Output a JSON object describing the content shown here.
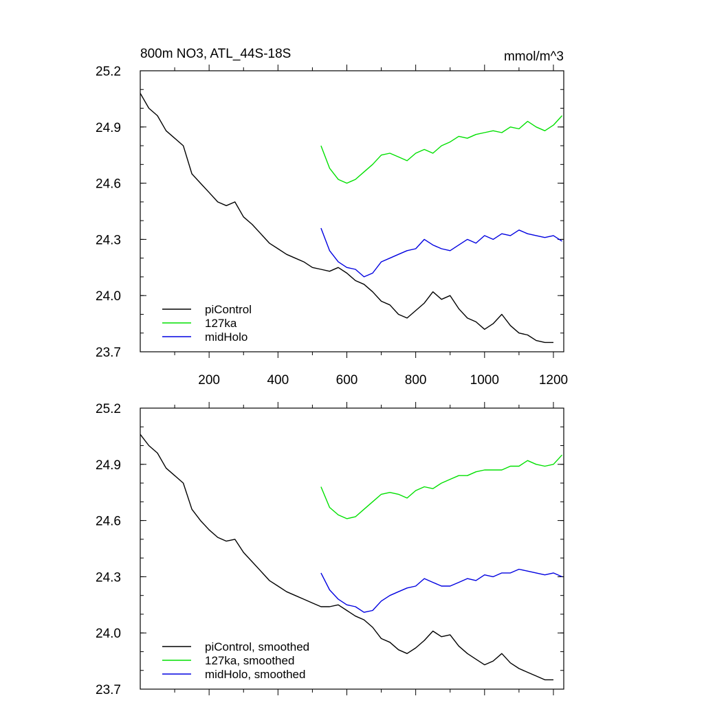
{
  "chart_data": [
    {
      "type": "line",
      "title": "800m NO3, ATL_44S-18S",
      "units_label": "mmol/m^3",
      "xlim": [
        0,
        1230
      ],
      "ylim": [
        23.7,
        25.2
      ],
      "x_ticks": [
        200,
        400,
        600,
        800,
        1000,
        1200
      ],
      "x_tick_labels": [
        "200",
        "400",
        "600",
        "800",
        "1000",
        "1200"
      ],
      "y_ticks": [
        23.7,
        24.0,
        24.3,
        24.6,
        24.9,
        25.2
      ],
      "y_tick_labels": [
        "23.7",
        "24.0",
        "24.3",
        "24.6",
        "24.9",
        "25.2"
      ],
      "legend_position": "bottom-left",
      "series": [
        {
          "name": "piControl",
          "color": "#000000",
          "x": [
            0,
            25,
            50,
            75,
            100,
            125,
            150,
            175,
            200,
            225,
            250,
            275,
            300,
            325,
            350,
            375,
            400,
            425,
            450,
            475,
            500,
            525,
            550,
            575,
            600,
            625,
            650,
            675,
            700,
            725,
            750,
            775,
            800,
            825,
            850,
            875,
            900,
            925,
            950,
            975,
            1000,
            1025,
            1050,
            1075,
            1100,
            1125,
            1150,
            1175,
            1200
          ],
          "y": [
            25.08,
            25.0,
            24.96,
            24.88,
            24.84,
            24.8,
            24.65,
            24.6,
            24.55,
            24.5,
            24.48,
            24.5,
            24.42,
            24.38,
            24.33,
            24.28,
            24.25,
            24.22,
            24.2,
            24.18,
            24.15,
            24.14,
            24.13,
            24.15,
            24.12,
            24.08,
            24.06,
            24.02,
            23.97,
            23.95,
            23.9,
            23.88,
            23.92,
            23.96,
            24.02,
            23.98,
            24.0,
            23.93,
            23.88,
            23.86,
            23.82,
            23.85,
            23.9,
            23.84,
            23.8,
            23.79,
            23.76,
            23.75,
            23.75
          ]
        },
        {
          "name": "127ka",
          "color": "#00e000",
          "x": [
            525,
            550,
            575,
            600,
            625,
            650,
            675,
            700,
            725,
            750,
            775,
            800,
            825,
            850,
            875,
            900,
            925,
            950,
            975,
            1000,
            1025,
            1050,
            1075,
            1100,
            1125,
            1150,
            1175,
            1200,
            1225
          ],
          "y": [
            24.8,
            24.68,
            24.62,
            24.6,
            24.62,
            24.66,
            24.7,
            24.75,
            24.76,
            24.74,
            24.72,
            24.76,
            24.78,
            24.76,
            24.8,
            24.82,
            24.85,
            24.84,
            24.86,
            24.87,
            24.88,
            24.87,
            24.9,
            24.89,
            24.93,
            24.9,
            24.88,
            24.91,
            24.96
          ]
        },
        {
          "name": "midHolo",
          "color": "#0000e0",
          "x": [
            525,
            550,
            575,
            600,
            625,
            650,
            675,
            700,
            725,
            750,
            775,
            800,
            825,
            850,
            875,
            900,
            925,
            950,
            975,
            1000,
            1025,
            1050,
            1075,
            1100,
            1125,
            1150,
            1175,
            1200,
            1225
          ],
          "y": [
            24.36,
            24.24,
            24.18,
            24.15,
            24.14,
            24.1,
            24.12,
            24.18,
            24.2,
            24.22,
            24.24,
            24.25,
            24.3,
            24.27,
            24.25,
            24.24,
            24.27,
            24.3,
            24.28,
            24.32,
            24.3,
            24.33,
            24.32,
            24.35,
            24.33,
            24.32,
            24.31,
            24.32,
            24.29
          ]
        }
      ]
    },
    {
      "type": "line",
      "title": "",
      "xlim": [
        0,
        1230
      ],
      "ylim": [
        23.7,
        25.2
      ],
      "y_ticks": [
        23.7,
        24.0,
        24.3,
        24.6,
        24.9,
        25.2
      ],
      "y_tick_labels": [
        "23.7",
        "24.0",
        "24.3",
        "24.6",
        "24.9",
        "25.2"
      ],
      "legend_position": "bottom-left",
      "series": [
        {
          "name": "piControl, smoothed",
          "color": "#000000",
          "x": [
            0,
            25,
            50,
            75,
            100,
            125,
            150,
            175,
            200,
            225,
            250,
            275,
            300,
            325,
            350,
            375,
            400,
            425,
            450,
            475,
            500,
            525,
            550,
            575,
            600,
            625,
            650,
            675,
            700,
            725,
            750,
            775,
            800,
            825,
            850,
            875,
            900,
            925,
            950,
            975,
            1000,
            1025,
            1050,
            1075,
            1100,
            1125,
            1150,
            1175,
            1200
          ],
          "y": [
            25.06,
            25.0,
            24.96,
            24.88,
            24.84,
            24.8,
            24.66,
            24.6,
            24.55,
            24.51,
            24.49,
            24.5,
            24.43,
            24.38,
            24.33,
            24.28,
            24.25,
            24.22,
            24.2,
            24.18,
            24.16,
            24.14,
            24.14,
            24.15,
            24.12,
            24.09,
            24.07,
            24.03,
            23.97,
            23.95,
            23.91,
            23.89,
            23.92,
            23.96,
            24.01,
            23.98,
            23.99,
            23.93,
            23.89,
            23.86,
            23.83,
            23.85,
            23.89,
            23.84,
            23.81,
            23.79,
            23.77,
            23.75,
            23.75
          ]
        },
        {
          "name": "127ka, smoothed",
          "color": "#00e000",
          "x": [
            525,
            550,
            575,
            600,
            625,
            650,
            675,
            700,
            725,
            750,
            775,
            800,
            825,
            850,
            875,
            900,
            925,
            950,
            975,
            1000,
            1025,
            1050,
            1075,
            1100,
            1125,
            1150,
            1175,
            1200,
            1225
          ],
          "y": [
            24.78,
            24.67,
            24.63,
            24.61,
            24.62,
            24.66,
            24.7,
            24.74,
            24.75,
            24.74,
            24.72,
            24.76,
            24.78,
            24.77,
            24.8,
            24.82,
            24.84,
            24.84,
            24.86,
            24.87,
            24.87,
            24.87,
            24.89,
            24.89,
            24.92,
            24.9,
            24.89,
            24.9,
            24.95
          ]
        },
        {
          "name": "midHolo, smoothed",
          "color": "#0000e0",
          "x": [
            525,
            550,
            575,
            600,
            625,
            650,
            675,
            700,
            725,
            750,
            775,
            800,
            825,
            850,
            875,
            900,
            925,
            950,
            975,
            1000,
            1025,
            1050,
            1075,
            1100,
            1125,
            1150,
            1175,
            1200,
            1225
          ],
          "y": [
            24.32,
            24.23,
            24.18,
            24.15,
            24.14,
            24.11,
            24.12,
            24.17,
            24.2,
            24.22,
            24.24,
            24.25,
            24.29,
            24.27,
            24.25,
            24.25,
            24.27,
            24.29,
            24.28,
            24.31,
            24.3,
            24.32,
            24.32,
            24.34,
            24.33,
            24.32,
            24.31,
            24.32,
            24.3
          ]
        }
      ]
    }
  ]
}
